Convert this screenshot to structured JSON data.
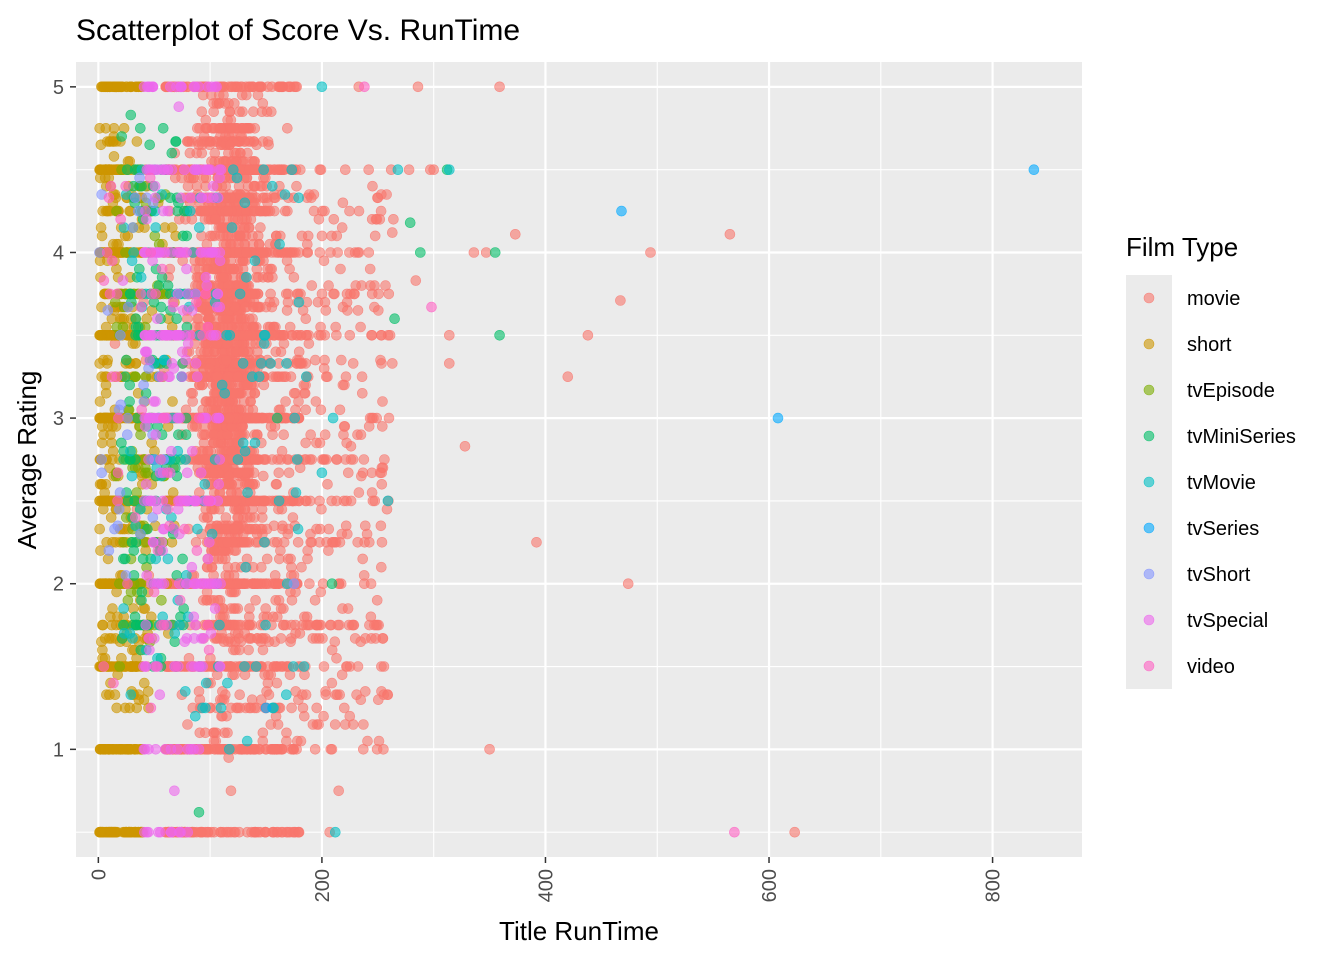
{
  "chart_data": {
    "type": "scatter",
    "title": "Scatterplot of Score Vs. RunTime",
    "xlabel": "Title RunTime",
    "ylabel": "Average Rating",
    "xlim": [
      -20,
      880
    ],
    "ylim": [
      0.35,
      5.15
    ],
    "x_ticks": [
      0,
      200,
      400,
      600,
      800
    ],
    "x_minor_ticks": [
      100,
      300,
      500,
      700
    ],
    "y_ticks": [
      1,
      2,
      3,
      4,
      5
    ],
    "y_minor_ticks": [
      0.5,
      1.5,
      2.5,
      3.5,
      4.5
    ],
    "grid": true,
    "point_alpha": 0.6,
    "legend": {
      "title": "Film Type",
      "placement": "right"
    },
    "series": [
      {
        "name": "movie",
        "color": "#F8766D",
        "clusters": [
          {
            "x_center": 115,
            "x_spread": 18,
            "y_min": 0.5,
            "y_max": 5.0,
            "count": 2200,
            "y_shape": "hourglass"
          },
          {
            "x_center": 140,
            "x_spread": 35,
            "y_min": 1.0,
            "y_max": 4.5,
            "count": 600
          },
          {
            "x_min": 60,
            "x_max": 180,
            "y_values": [
              0.5,
              1.0,
              1.5,
              2.0,
              2.5,
              3.0,
              3.5,
              4.0,
              4.5,
              5.0
            ],
            "count": 900
          },
          {
            "x_min": 175,
            "x_max": 260,
            "y_min": 1.0,
            "y_max": 4.5,
            "count": 260
          }
        ],
        "points": [
          [
            286,
            5.0
          ],
          [
            359,
            5.0
          ],
          [
            233,
            5.0
          ],
          [
            262,
            4.5
          ],
          [
            278,
            4.5
          ],
          [
            297,
            4.5
          ],
          [
            373,
            4.11
          ],
          [
            565,
            4.11
          ],
          [
            494,
            4.0
          ],
          [
            336,
            4.0
          ],
          [
            347,
            4.0
          ],
          [
            467,
            3.71
          ],
          [
            314,
            3.5
          ],
          [
            438,
            3.5
          ],
          [
            261,
            3.5
          ],
          [
            420,
            3.25
          ],
          [
            314,
            3.33
          ],
          [
            328,
            2.83
          ],
          [
            392,
            2.25
          ],
          [
            474,
            2.0
          ],
          [
            244,
            2.0
          ],
          [
            350,
            1.0
          ],
          [
            255,
            1.0
          ],
          [
            623,
            0.5
          ],
          [
            215,
            0.75
          ],
          [
            210,
            2.25
          ],
          [
            245,
            4.2
          ],
          [
            263,
            4.12
          ],
          [
            284,
            3.83
          ],
          [
            260,
            3.0
          ],
          [
            249,
            3.0
          ],
          [
            263,
            3.33
          ],
          [
            204,
            2.75
          ],
          [
            226,
            2.83
          ],
          [
            209,
            1.0
          ],
          [
            220,
            1.25
          ],
          [
            207,
            0.5
          ],
          [
            300,
            4.5
          ],
          [
            214,
            4.0
          ],
          [
            232,
            4.0
          ],
          [
            247,
            3.67
          ]
        ]
      },
      {
        "name": "short",
        "color": "#CD9600",
        "clusters": [
          {
            "x_min": 1,
            "x_max": 40,
            "y_values": [
              0.5,
              1.0,
              1.5,
              2.0,
              2.5,
              3.0,
              3.5,
              4.0,
              4.5,
              5.0
            ],
            "count": 520
          },
          {
            "x_min": 1,
            "x_max": 45,
            "y_min": 1.25,
            "y_max": 4.75,
            "count": 320
          },
          {
            "x_min": 40,
            "x_max": 70,
            "y_min": 1.5,
            "y_max": 4.5,
            "count": 60
          }
        ],
        "points": [
          [
            14,
            4.58
          ],
          [
            23,
            4.75
          ],
          [
            28,
            1.25
          ],
          [
            12,
            1.75
          ]
        ]
      },
      {
        "name": "tvEpisode",
        "color": "#7CAE00",
        "clusters": [
          {
            "x_min": 15,
            "x_max": 60,
            "y_min": 1.5,
            "y_max": 4.5,
            "count": 90
          }
        ],
        "points": [
          [
            53,
            4.33
          ],
          [
            61,
            3.75
          ]
        ]
      },
      {
        "name": "tvMiniSeries",
        "color": "#00BE67",
        "clusters": [
          {
            "x_min": 20,
            "x_max": 80,
            "y_min": 1.5,
            "y_max": 4.75,
            "count": 150
          }
        ],
        "points": [
          [
            288,
            4.0
          ],
          [
            355,
            4.0
          ],
          [
            359,
            3.5
          ],
          [
            265,
            3.6
          ],
          [
            312,
            4.5
          ],
          [
            279,
            4.18
          ],
          [
            209,
            2.0
          ],
          [
            29,
            4.83
          ],
          [
            90,
            0.62
          ],
          [
            58,
            4.75
          ],
          [
            90,
            1.5
          ],
          [
            160,
            3.0
          ]
        ]
      },
      {
        "name": "tvMovie",
        "color": "#00BFC4",
        "clusters": [
          {
            "x_min": 20,
            "x_max": 180,
            "y_min": 1.0,
            "y_max": 4.5,
            "count": 130
          }
        ],
        "points": [
          [
            200,
            5.0
          ],
          [
            268,
            4.5
          ],
          [
            314,
            4.5
          ],
          [
            259,
            2.5
          ],
          [
            210,
            3.0
          ],
          [
            200,
            2.67
          ],
          [
            186,
            3.25
          ],
          [
            212,
            0.5
          ],
          [
            184,
            1.5
          ],
          [
            29,
            1.33
          ]
        ]
      },
      {
        "name": "tvSeries",
        "color": "#00A9FF",
        "clusters": [],
        "points": [
          [
            837,
            4.5
          ],
          [
            608,
            3.0
          ],
          [
            468,
            4.25
          ],
          [
            150,
            1.25
          ]
        ]
      },
      {
        "name": "tvShort",
        "color": "#8494FF",
        "clusters": [
          {
            "x_min": 1,
            "x_max": 60,
            "y_min": 2.0,
            "y_max": 4.5,
            "count": 30
          }
        ],
        "points": [
          [
            3,
            2.67
          ],
          [
            20,
            3.08
          ],
          [
            1,
            4.0
          ],
          [
            175,
            2.0
          ]
        ]
      },
      {
        "name": "tvSpecial",
        "color": "#ED68ED",
        "clusters": [
          {
            "x_min": 40,
            "x_max": 110,
            "y_values": [
              0.5,
              1.0,
              1.5,
              2.0,
              2.5,
              3.0,
              3.5,
              4.0,
              4.5,
              5.0
            ],
            "count": 170
          },
          {
            "x_min": 40,
            "x_max": 110,
            "y_min": 1.5,
            "y_max": 4.5,
            "count": 120
          }
        ],
        "points": [
          [
            72,
            4.88
          ],
          [
            68,
            0.75
          ],
          [
            55,
            1.33
          ],
          [
            22,
            3.83
          ]
        ]
      },
      {
        "name": "video",
        "color": "#FF61C3",
        "clusters": [
          {
            "x_min": 1,
            "x_max": 100,
            "y_min": 1.0,
            "y_max": 4.5,
            "count": 50
          }
        ],
        "points": [
          [
            238,
            5.0
          ],
          [
            298,
            3.67
          ],
          [
            569,
            0.5
          ],
          [
            52,
            1.5
          ],
          [
            5,
            3.83
          ]
        ]
      }
    ]
  }
}
